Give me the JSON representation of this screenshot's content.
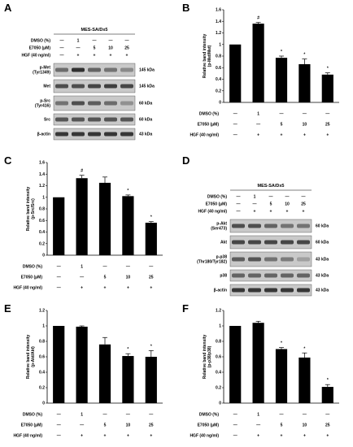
{
  "figure": {
    "panel_labels": [
      "A",
      "B",
      "C",
      "D",
      "E",
      "F"
    ],
    "treatment_rows": {
      "dmso": "DMSO (%)",
      "e7050": "E7050 (μM)",
      "hgf": "HGF (40 ng/ml)"
    },
    "treatment_values": {
      "dmso": [
        "—",
        "1",
        "—",
        "—",
        "—"
      ],
      "e7050": [
        "—",
        "—",
        "5",
        "10",
        "25"
      ],
      "hgf": [
        "—",
        "+",
        "+",
        "+",
        "+"
      ]
    }
  },
  "blot_A": {
    "title": "MES-SA/Dx5",
    "treatment_values": {
      "dmso": [
        "—",
        "1",
        "—",
        "—",
        "—"
      ],
      "e7050": [
        "—",
        "—",
        "5",
        "10",
        "25"
      ],
      "hgf": [
        "—",
        "+",
        "+",
        "+",
        "+"
      ]
    },
    "rows": [
      {
        "label": "p-Met\n(Tyr1349)",
        "kda": "145 kDa"
      },
      {
        "label": "Met",
        "kda": "145 kDa"
      },
      {
        "label": "p-Src\n(Tyr416)",
        "kda": "60 kDa"
      },
      {
        "label": "Src",
        "kda": "60 kDa"
      },
      {
        "label": "β-actin",
        "kda": "43 kDa"
      }
    ]
  },
  "blot_D": {
    "title": "MES-SA/Dx5",
    "treatment_values": {
      "dmso": [
        "—",
        "1",
        "—",
        "—",
        "—"
      ],
      "e7050": [
        "—",
        "—",
        "5",
        "10",
        "25"
      ],
      "hgf": [
        "—",
        "+",
        "+",
        "+",
        "+"
      ]
    },
    "rows": [
      {
        "label": "p-Akt\n(Ser473)",
        "kda": "60 kDa"
      },
      {
        "label": "Akt",
        "kda": "60 kDa"
      },
      {
        "label": "p-p38\n(Thr180/Tyr182)",
        "kda": "43 kDa"
      },
      {
        "label": "p38",
        "kda": "43 kDa"
      },
      {
        "label": "β-actin",
        "kda": "43 kDa"
      }
    ]
  },
  "chart_data": [
    {
      "panel": "B",
      "type": "bar",
      "ylabel": "Relative band intensity\n(p-Met/Met)",
      "ylim": [
        0,
        1.6
      ],
      "yticks": [
        "0",
        "0.2",
        "0.4",
        "0.6",
        "0.8",
        "1",
        "1.2",
        "1.4",
        "1.6"
      ],
      "values": [
        1.0,
        1.36,
        0.77,
        0.66,
        0.48
      ],
      "errors": [
        0.0,
        0.02,
        0.03,
        0.09,
        0.03
      ],
      "marks": [
        "",
        "#",
        "*",
        "*",
        "*"
      ]
    },
    {
      "panel": "C",
      "type": "bar",
      "ylabel": "Relative band intensity\n(p-Src/Src)",
      "ylim": [
        0,
        1.6
      ],
      "yticks": [
        "0",
        "0.2",
        "0.4",
        "0.6",
        "0.8",
        "1",
        "1.2",
        "1.4",
        "1.6"
      ],
      "values": [
        1.0,
        1.33,
        1.25,
        1.02,
        0.56
      ],
      "errors": [
        0.0,
        0.05,
        0.1,
        0.02,
        0.02
      ],
      "marks": [
        "",
        "#",
        "",
        "*",
        "*"
      ]
    },
    {
      "panel": "E",
      "type": "bar",
      "ylabel": "Relative band intensity\n(p-Akt/Akt)",
      "ylim": [
        0,
        1.2
      ],
      "yticks": [
        "0",
        "0.2",
        "0.4",
        "0.6",
        "0.8",
        "1",
        "1.2"
      ],
      "values": [
        1.0,
        0.99,
        0.76,
        0.61,
        0.6
      ],
      "errors": [
        0.0,
        0.01,
        0.09,
        0.03,
        0.08
      ],
      "marks": [
        "",
        "",
        "",
        "*",
        "*"
      ]
    },
    {
      "panel": "F",
      "type": "bar",
      "ylabel": "Relative band intensity\n(p-p38/p38)",
      "ylim": [
        0,
        1.2
      ],
      "yticks": [
        "0",
        "0.2",
        "0.4",
        "0.6",
        "0.8",
        "1",
        "1.2"
      ],
      "values": [
        1.0,
        1.04,
        0.7,
        0.59,
        0.21
      ],
      "errors": [
        0.0,
        0.02,
        0.02,
        0.06,
        0.03
      ],
      "marks": [
        "",
        "",
        "*",
        "*",
        "*"
      ]
    }
  ]
}
